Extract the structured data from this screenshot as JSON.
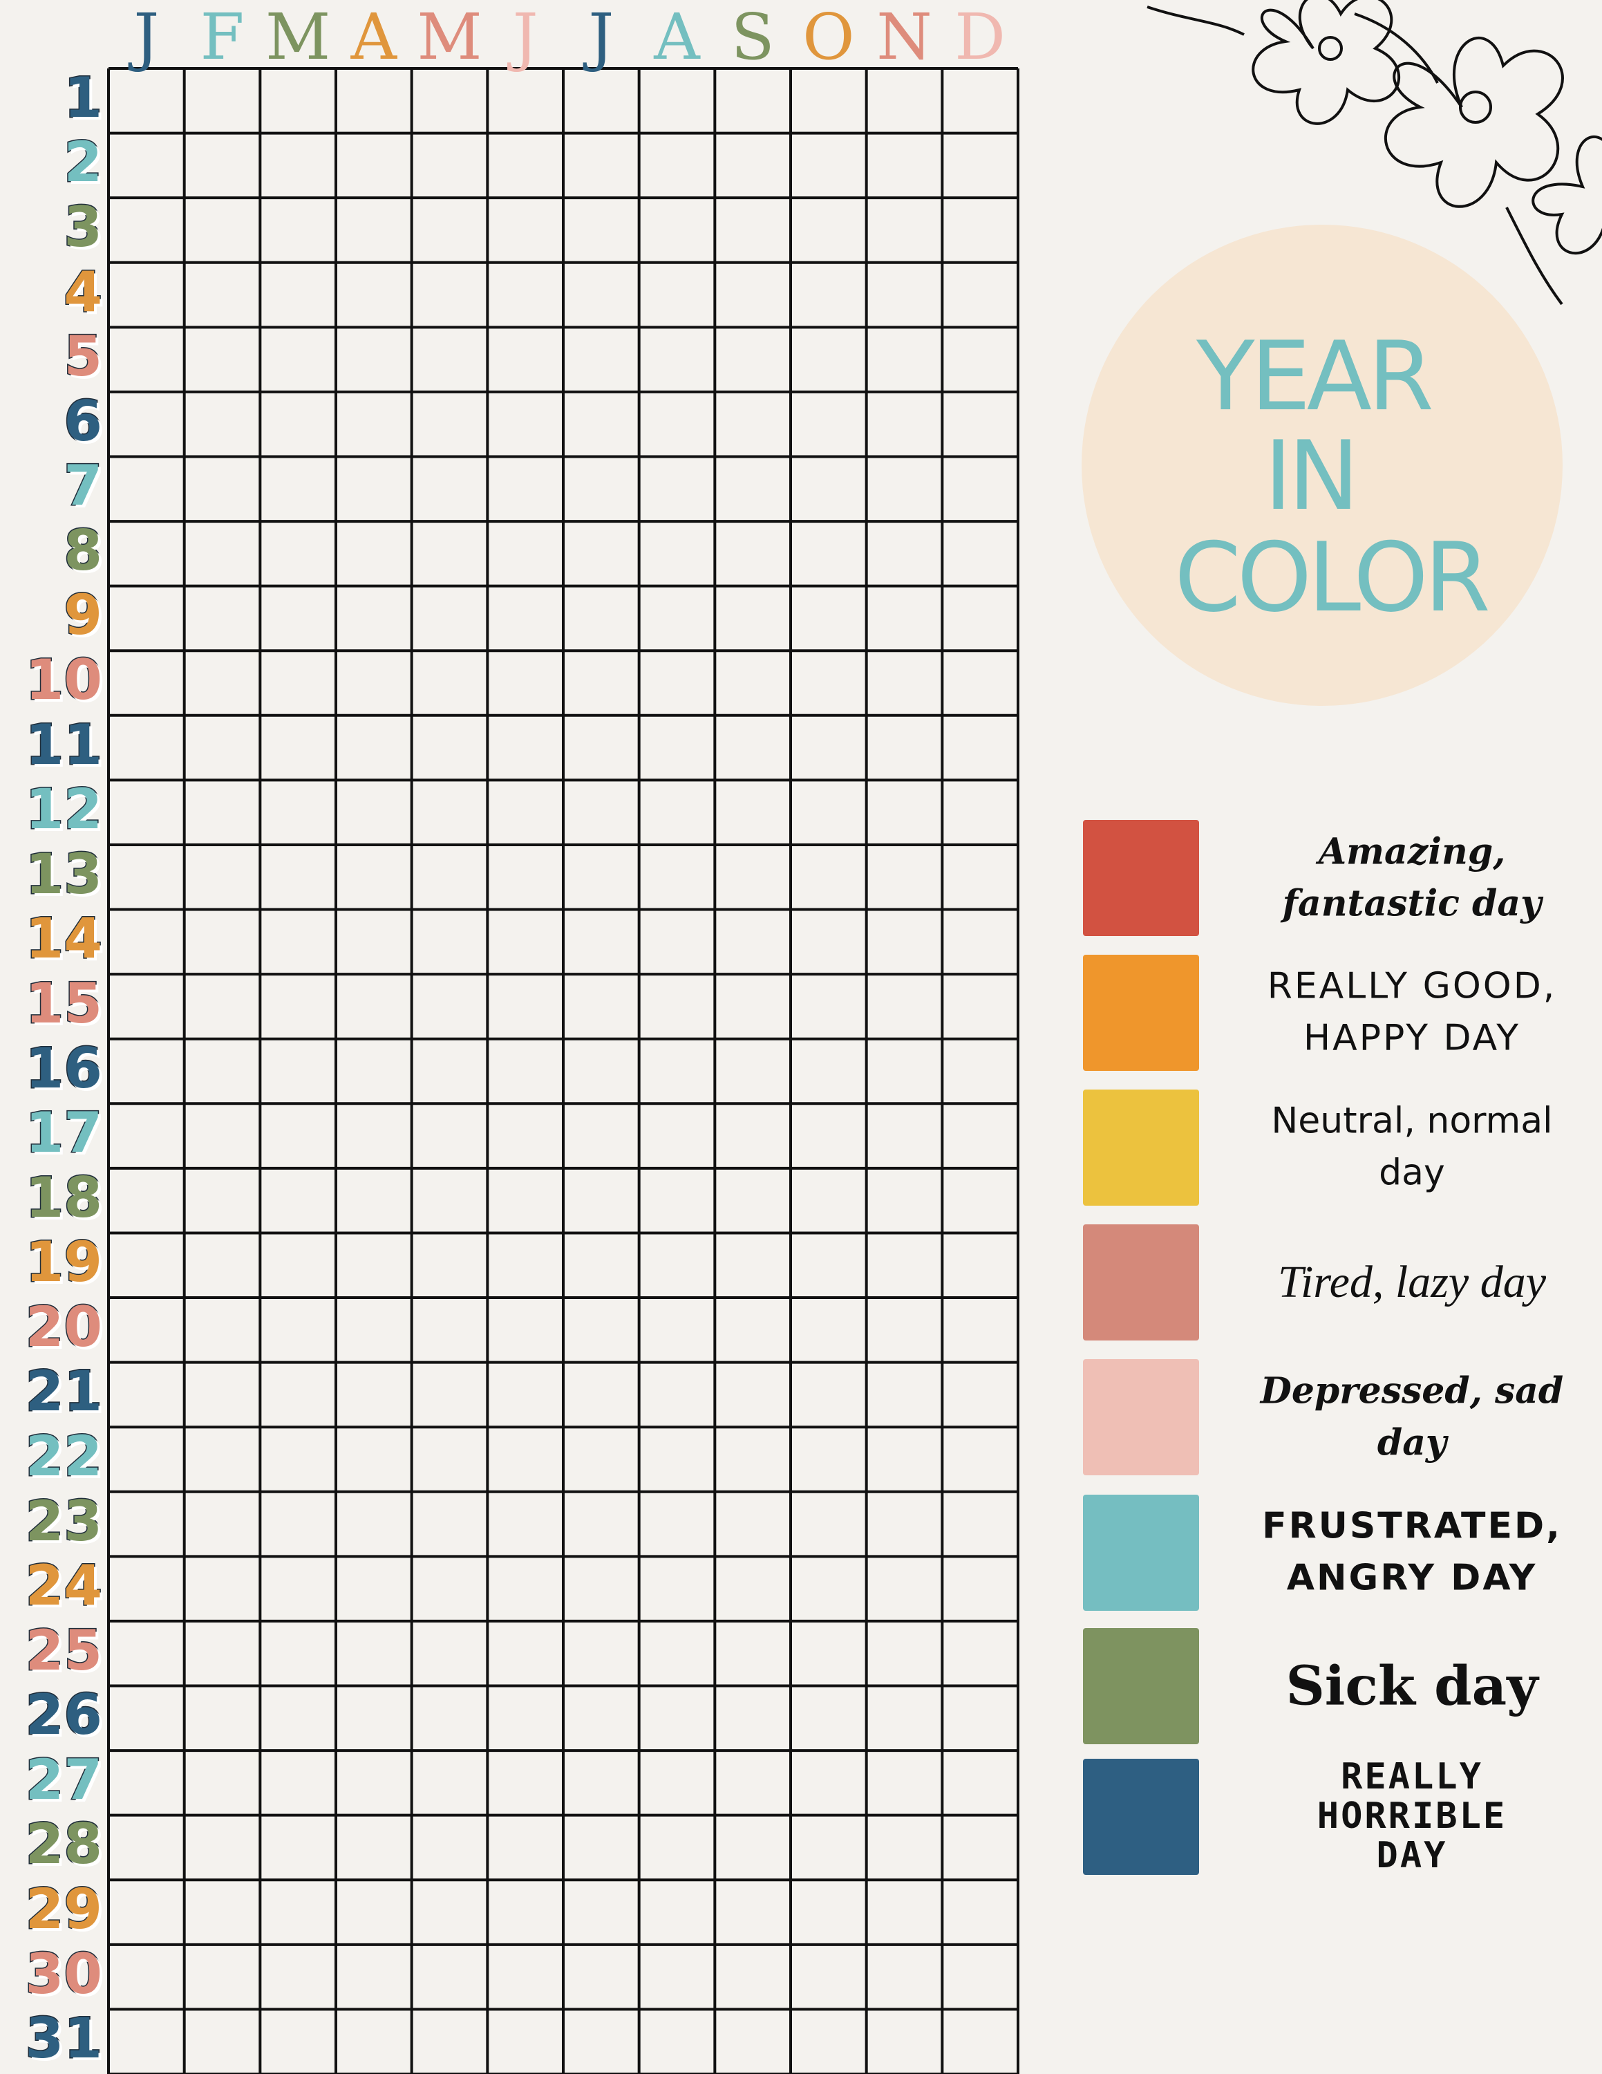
{
  "header": {
    "months": [
      "J",
      "F",
      "M",
      "A",
      "M",
      "J",
      "J",
      "A",
      "S",
      "O",
      "N",
      "D"
    ],
    "title": [
      "YEAR",
      "IN",
      "COLOR"
    ]
  },
  "days": [
    1,
    2,
    3,
    4,
    5,
    6,
    7,
    8,
    9,
    10,
    11,
    12,
    13,
    14,
    15,
    16,
    17,
    18,
    19,
    20,
    21,
    22,
    23,
    24,
    25,
    26,
    27,
    28,
    29,
    30,
    31
  ],
  "legend": [
    {
      "label": "Amazing, fantastic day",
      "color": "#d25241"
    },
    {
      "label": "REALLY GOOD, HAPPY DAY",
      "color": "#ef962c"
    },
    {
      "label": "Neutral, normal day",
      "color": "#ecc23e"
    },
    {
      "label": "Tired, lazy day",
      "color": "#d4897a"
    },
    {
      "label": "Depressed, sad day",
      "color": "#efbfb5"
    },
    {
      "label": "FRUSTRATED, ANGRY DAY",
      "color": "#75bec1"
    },
    {
      "label": "Sick day",
      "color": "#7e9360"
    },
    {
      "label": "REALLY HORRIBLE DAY",
      "color": "#2e5f82"
    }
  ]
}
